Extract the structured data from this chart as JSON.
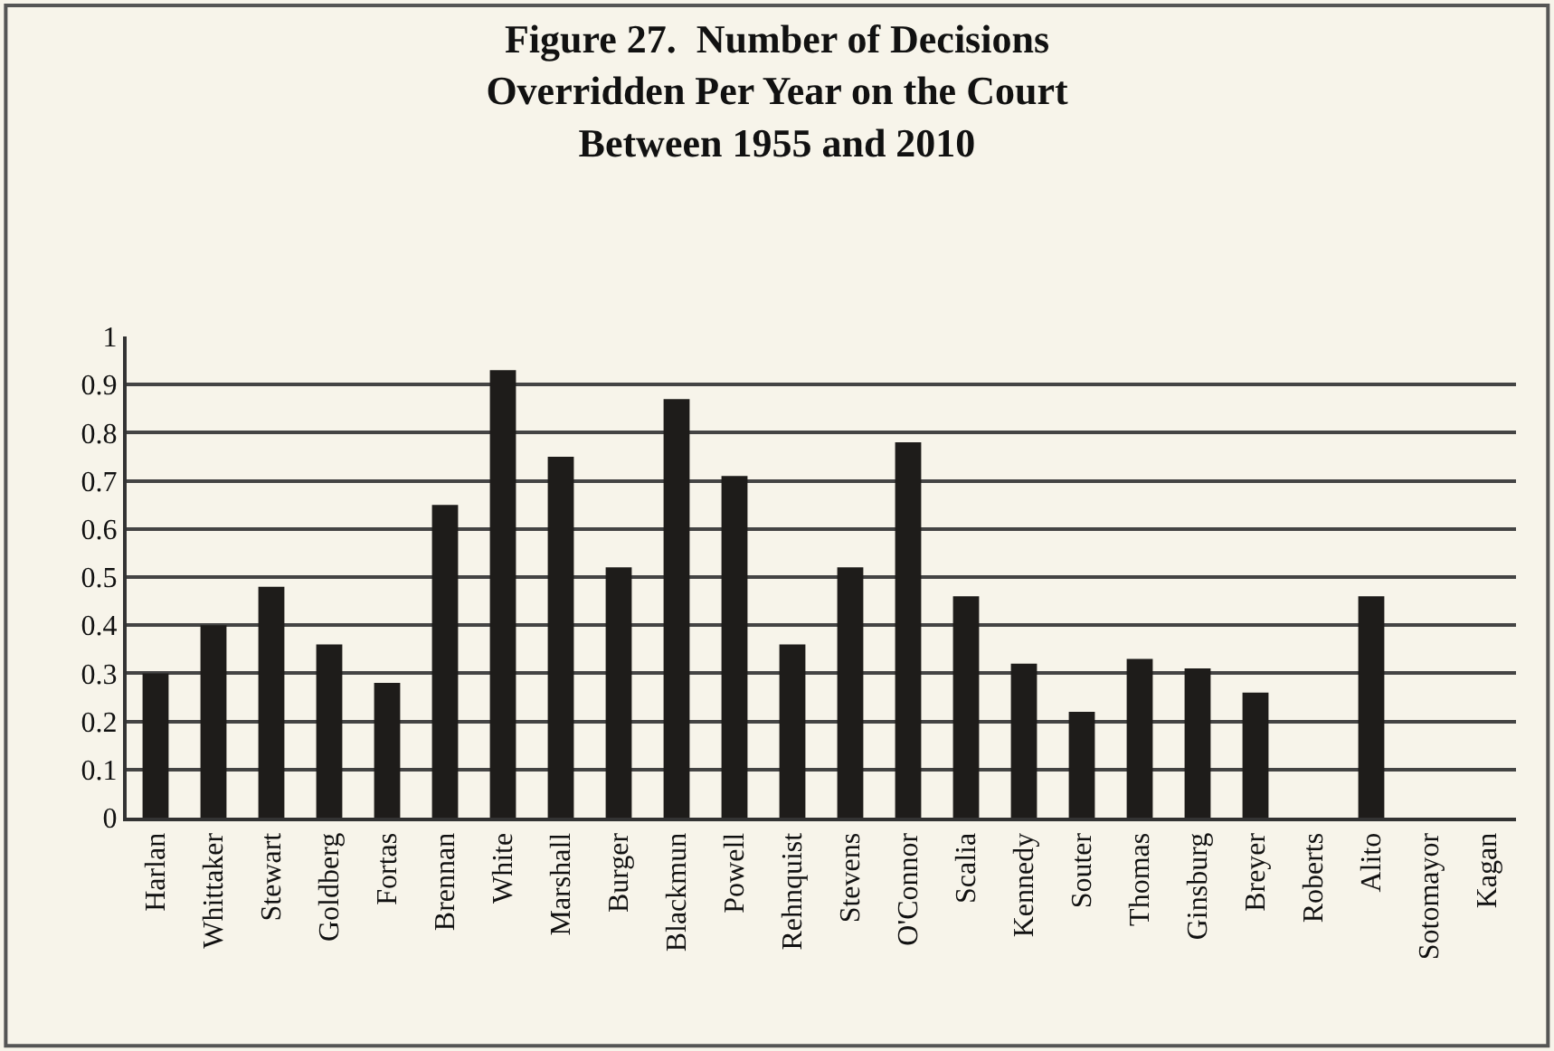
{
  "chart_data": {
    "type": "bar",
    "title": "Figure 27.  Number of Decisions\nOverridden Per Year on the Court\nBetween 1955 and 2010",
    "categories": [
      "Harlan",
      "Whittaker",
      "Stewart",
      "Goldberg",
      "Fortas",
      "Brennan",
      "White",
      "Marshall",
      "Burger",
      "Blackmun",
      "Powell",
      "Rehnquist",
      "Stevens",
      "O'Connor",
      "Scalia",
      "Kennedy",
      "Souter",
      "Thomas",
      "Ginsburg",
      "Breyer",
      "Roberts",
      "Alito",
      "Sotomayor",
      "Kagan"
    ],
    "values": [
      0.3,
      0.4,
      0.48,
      0.36,
      0.28,
      0.65,
      0.93,
      0.75,
      0.52,
      0.87,
      0.71,
      0.36,
      0.52,
      0.78,
      0.46,
      0.32,
      0.22,
      0.33,
      0.31,
      0.26,
      0,
      0.46,
      0,
      0
    ],
    "color": "#1e1c1a",
    "ylim": [
      0,
      1
    ],
    "yticks": [
      0,
      0.1,
      0.2,
      0.3,
      0.4,
      0.5,
      0.6,
      0.7,
      0.8,
      0.9,
      1
    ],
    "grid": "y",
    "legend": false
  }
}
